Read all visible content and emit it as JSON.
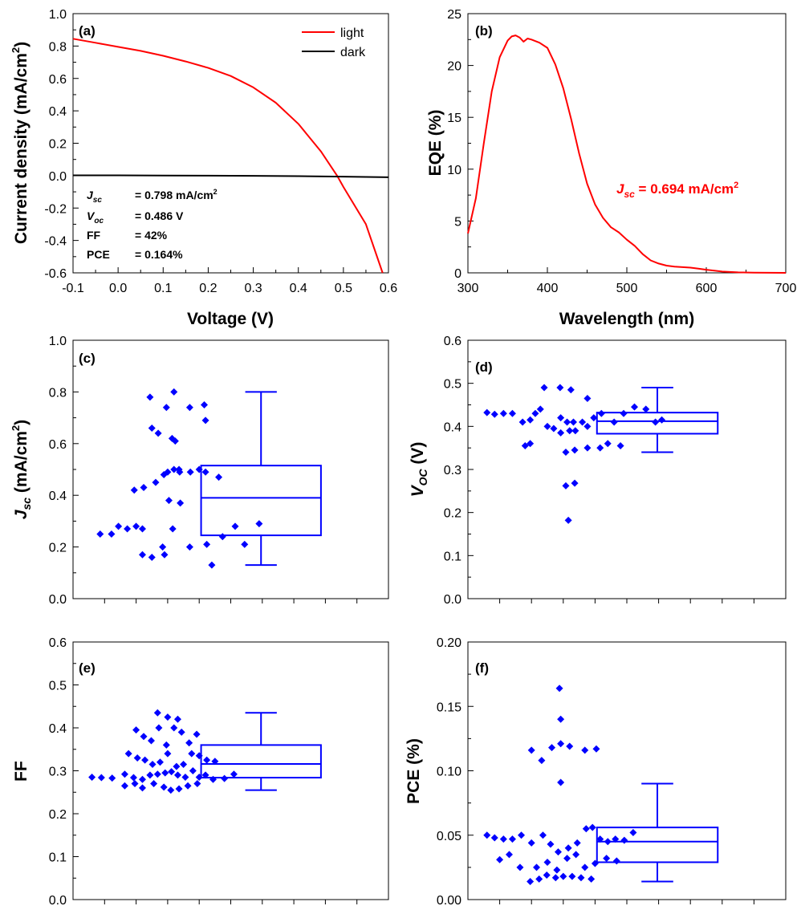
{
  "chart_data": [
    {
      "id": "a",
      "type": "line",
      "panel_label": "(a)",
      "xlabel": "Voltage (V)",
      "ylabel_main": "Current density (mA/cm",
      "ylabel_sup": "2",
      "ylabel_tail": ")",
      "xlim": [
        -0.1,
        0.6
      ],
      "ylim": [
        -0.6,
        1.0
      ],
      "xticks": [
        -0.1,
        0.0,
        0.1,
        0.2,
        0.3,
        0.4,
        0.5,
        0.6
      ],
      "xtick_labels": [
        "-0.1",
        "0.0",
        "0.1",
        "0.2",
        "0.3",
        "0.4",
        "0.5",
        "0.6"
      ],
      "yticks": [
        -0.6,
        -0.4,
        -0.2,
        0.0,
        0.2,
        0.4,
        0.6,
        0.8,
        1.0
      ],
      "ytick_labels": [
        "-0.6",
        "-0.4",
        "-0.2",
        "0.0",
        "0.2",
        "0.4",
        "0.6",
        "0.8",
        "1.0"
      ],
      "legend": "top-right",
      "series": [
        {
          "name": "light",
          "color": "#ff0000",
          "x": [
            -0.1,
            -0.05,
            0.0,
            0.05,
            0.1,
            0.15,
            0.2,
            0.25,
            0.3,
            0.35,
            0.4,
            0.45,
            0.486,
            0.5,
            0.55,
            0.587
          ],
          "y": [
            0.845,
            0.82,
            0.795,
            0.77,
            0.74,
            0.705,
            0.665,
            0.615,
            0.545,
            0.45,
            0.32,
            0.15,
            0.0,
            -0.07,
            -0.3,
            -0.6
          ]
        },
        {
          "name": "dark",
          "color": "#000000",
          "x": [
            -0.1,
            0.0,
            0.1,
            0.2,
            0.3,
            0.4,
            0.5,
            0.6
          ],
          "y": [
            0.002,
            0.002,
            0.001,
            0.0,
            -0.001,
            -0.003,
            -0.006,
            -0.01
          ]
        }
      ],
      "annotations": [
        {
          "label_main": "J",
          "label_sub": "sc",
          "value": "= 0.798 mA/cm",
          "value_sup": "2"
        },
        {
          "label_main": "V",
          "label_sub": "oc",
          "value": "= 0.486 V",
          "value_sup": ""
        },
        {
          "label_main": "FF",
          "label_sub": "",
          "value": "= 42%",
          "value_sup": ""
        },
        {
          "label_main": "PCE",
          "label_sub": "",
          "value": "= 0.164%",
          "value_sup": ""
        }
      ]
    },
    {
      "id": "b",
      "type": "line",
      "panel_label": "(b)",
      "xlabel": "Wavelength (nm)",
      "ylabel": "EQE (%)",
      "xlim": [
        300,
        700
      ],
      "ylim": [
        0,
        25
      ],
      "xticks": [
        300,
        400,
        500,
        600,
        700
      ],
      "xtick_labels": [
        "300",
        "400",
        "500",
        "600",
        "700"
      ],
      "yticks": [
        0,
        5,
        10,
        15,
        20,
        25
      ],
      "ytick_labels": [
        "0",
        "5",
        "10",
        "15",
        "20",
        "25"
      ],
      "series": [
        {
          "color": "#ff0000",
          "x": [
            300,
            310,
            320,
            330,
            340,
            350,
            355,
            360,
            365,
            370,
            375,
            380,
            390,
            400,
            410,
            420,
            430,
            440,
            450,
            460,
            470,
            480,
            490,
            500,
            510,
            520,
            530,
            540,
            550,
            560,
            570,
            580,
            590,
            600,
            620,
            640,
            660,
            680,
            700
          ],
          "y": [
            3.8,
            7.2,
            12.5,
            17.5,
            20.8,
            22.4,
            22.8,
            22.9,
            22.7,
            22.3,
            22.6,
            22.5,
            22.2,
            21.7,
            20.1,
            17.8,
            14.8,
            11.5,
            8.6,
            6.6,
            5.3,
            4.4,
            3.9,
            3.2,
            2.6,
            1.8,
            1.2,
            0.9,
            0.7,
            0.6,
            0.55,
            0.5,
            0.4,
            0.3,
            0.12,
            0.05,
            0.02,
            0.01,
            0.0
          ]
        }
      ],
      "annotation": {
        "label_main": "J",
        "label_sub": "sc",
        "value": " = 0.694 mA/cm",
        "value_sup": "2",
        "color": "#ff0000"
      }
    },
    {
      "id": "c",
      "type": "scatter",
      "panel_label": "(c)",
      "ylabel_main": "J",
      "ylabel_sub": "sc",
      "ylabel_tail": " (mA/cm",
      "ylabel_sup": "2",
      "ylabel_end": ")",
      "ylim": [
        0.0,
        1.0
      ],
      "yticks": [
        0.0,
        0.2,
        0.4,
        0.6,
        0.8,
        1.0
      ],
      "ytick_labels": [
        "0.0",
        "0.2",
        "0.4",
        "0.6",
        "0.8",
        "1.0"
      ],
      "color": "#0000ff",
      "points": [
        {
          "x": 0.43,
          "y": 0.25
        },
        {
          "x": 0.61,
          "y": 0.25
        },
        {
          "x": 0.86,
          "y": 0.27
        },
        {
          "x": 0.72,
          "y": 0.28
        },
        {
          "x": 1.1,
          "y": 0.27
        },
        {
          "x": 1.0,
          "y": 0.28
        },
        {
          "x": 0.97,
          "y": 0.42
        },
        {
          "x": 1.12,
          "y": 0.43
        },
        {
          "x": 1.31,
          "y": 0.45
        },
        {
          "x": 1.44,
          "y": 0.48
        },
        {
          "x": 1.5,
          "y": 0.49
        },
        {
          "x": 1.69,
          "y": 0.49
        },
        {
          "x": 1.86,
          "y": 0.49
        },
        {
          "x": 2.1,
          "y": 0.49
        },
        {
          "x": 2.31,
          "y": 0.47
        },
        {
          "x": 1.6,
          "y": 0.5
        },
        {
          "x": 1.68,
          "y": 0.5
        },
        {
          "x": 2.0,
          "y": 0.5
        },
        {
          "x": 1.52,
          "y": 0.38
        },
        {
          "x": 1.7,
          "y": 0.37
        },
        {
          "x": 1.58,
          "y": 0.27
        },
        {
          "x": 1.57,
          "y": 0.62
        },
        {
          "x": 1.62,
          "y": 0.61
        },
        {
          "x": 1.25,
          "y": 0.66
        },
        {
          "x": 1.35,
          "y": 0.64
        },
        {
          "x": 1.48,
          "y": 0.74
        },
        {
          "x": 1.85,
          "y": 0.74
        },
        {
          "x": 2.1,
          "y": 0.69
        },
        {
          "x": 2.08,
          "y": 0.75
        },
        {
          "x": 1.22,
          "y": 0.78
        },
        {
          "x": 1.6,
          "y": 0.8
        },
        {
          "x": 1.1,
          "y": 0.17
        },
        {
          "x": 1.25,
          "y": 0.16
        },
        {
          "x": 1.45,
          "y": 0.17
        },
        {
          "x": 1.42,
          "y": 0.2
        },
        {
          "x": 1.85,
          "y": 0.2
        },
        {
          "x": 2.12,
          "y": 0.21
        },
        {
          "x": 2.2,
          "y": 0.13
        },
        {
          "x": 2.37,
          "y": 0.24
        },
        {
          "x": 2.57,
          "y": 0.28
        },
        {
          "x": 2.72,
          "y": 0.21
        },
        {
          "x": 2.95,
          "y": 0.29
        }
      ],
      "box": {
        "whisker_low": 0.13,
        "q1": 0.245,
        "median": 0.39,
        "q3": 0.515,
        "whisker_high": 0.8
      }
    },
    {
      "id": "d",
      "type": "scatter",
      "panel_label": "(d)",
      "ylabel_main": "V",
      "ylabel_sub": "OC",
      "ylabel_tail": " (V)",
      "ylim": [
        0.0,
        0.6
      ],
      "yticks": [
        0.0,
        0.1,
        0.2,
        0.3,
        0.4,
        0.5,
        0.6
      ],
      "ytick_labels": [
        "0.0",
        "0.1",
        "0.2",
        "0.3",
        "0.4",
        "0.5",
        "0.6"
      ],
      "color": "#0000ff",
      "points": [
        {
          "x": 0.3,
          "y": 0.432
        },
        {
          "x": 0.42,
          "y": 0.428
        },
        {
          "x": 0.56,
          "y": 0.43
        },
        {
          "x": 0.7,
          "y": 0.43
        },
        {
          "x": 0.86,
          "y": 0.41
        },
        {
          "x": 0.98,
          "y": 0.415
        },
        {
          "x": 1.06,
          "y": 0.43
        },
        {
          "x": 1.14,
          "y": 0.44
        },
        {
          "x": 1.25,
          "y": 0.4
        },
        {
          "x": 1.35,
          "y": 0.395
        },
        {
          "x": 1.46,
          "y": 0.42
        },
        {
          "x": 1.56,
          "y": 0.41
        },
        {
          "x": 1.66,
          "y": 0.41
        },
        {
          "x": 1.8,
          "y": 0.41
        },
        {
          "x": 1.46,
          "y": 0.385
        },
        {
          "x": 1.6,
          "y": 0.39
        },
        {
          "x": 1.69,
          "y": 0.39
        },
        {
          "x": 1.88,
          "y": 0.4
        },
        {
          "x": 1.98,
          "y": 0.42
        },
        {
          "x": 2.1,
          "y": 0.43
        },
        {
          "x": 2.3,
          "y": 0.41
        },
        {
          "x": 2.45,
          "y": 0.43
        },
        {
          "x": 2.62,
          "y": 0.445
        },
        {
          "x": 2.8,
          "y": 0.44
        },
        {
          "x": 2.95,
          "y": 0.41
        },
        {
          "x": 3.05,
          "y": 0.415
        },
        {
          "x": 1.2,
          "y": 0.49
        },
        {
          "x": 1.45,
          "y": 0.49
        },
        {
          "x": 1.62,
          "y": 0.485
        },
        {
          "x": 1.88,
          "y": 0.465
        },
        {
          "x": 0.9,
          "y": 0.355
        },
        {
          "x": 0.98,
          "y": 0.36
        },
        {
          "x": 1.54,
          "y": 0.34
        },
        {
          "x": 1.68,
          "y": 0.345
        },
        {
          "x": 1.88,
          "y": 0.35
        },
        {
          "x": 2.08,
          "y": 0.35
        },
        {
          "x": 2.2,
          "y": 0.36
        },
        {
          "x": 2.4,
          "y": 0.355
        },
        {
          "x": 1.54,
          "y": 0.262
        },
        {
          "x": 1.68,
          "y": 0.268
        },
        {
          "x": 1.58,
          "y": 0.182
        }
      ],
      "box": {
        "whisker_low": 0.34,
        "q1": 0.383,
        "median": 0.412,
        "q3": 0.432,
        "whisker_high": 0.49
      }
    },
    {
      "id": "e",
      "type": "scatter",
      "panel_label": "(e)",
      "ylabel": "FF",
      "ylim": [
        0.0,
        0.6
      ],
      "yticks": [
        0.0,
        0.1,
        0.2,
        0.3,
        0.4,
        0.5,
        0.6
      ],
      "ytick_labels": [
        "0.0",
        "0.1",
        "0.2",
        "0.3",
        "0.4",
        "0.5",
        "0.6"
      ],
      "color": "#0000ff",
      "points": [
        {
          "x": 0.3,
          "y": 0.285
        },
        {
          "x": 0.45,
          "y": 0.284
        },
        {
          "x": 0.62,
          "y": 0.283
        },
        {
          "x": 0.82,
          "y": 0.292
        },
        {
          "x": 0.96,
          "y": 0.284
        },
        {
          "x": 1.1,
          "y": 0.28
        },
        {
          "x": 1.22,
          "y": 0.29
        },
        {
          "x": 1.34,
          "y": 0.292
        },
        {
          "x": 1.46,
          "y": 0.295
        },
        {
          "x": 1.56,
          "y": 0.298
        },
        {
          "x": 1.66,
          "y": 0.29
        },
        {
          "x": 1.78,
          "y": 0.285
        },
        {
          "x": 1.9,
          "y": 0.3
        },
        {
          "x": 2.0,
          "y": 0.285
        },
        {
          "x": 2.1,
          "y": 0.29
        },
        {
          "x": 2.22,
          "y": 0.28
        },
        {
          "x": 2.4,
          "y": 0.282
        },
        {
          "x": 2.55,
          "y": 0.292
        },
        {
          "x": 0.82,
          "y": 0.265
        },
        {
          "x": 0.98,
          "y": 0.27
        },
        {
          "x": 1.1,
          "y": 0.26
        },
        {
          "x": 1.28,
          "y": 0.27
        },
        {
          "x": 1.44,
          "y": 0.262
        },
        {
          "x": 1.55,
          "y": 0.255
        },
        {
          "x": 1.68,
          "y": 0.258
        },
        {
          "x": 1.82,
          "y": 0.265
        },
        {
          "x": 1.97,
          "y": 0.27
        },
        {
          "x": 0.88,
          "y": 0.34
        },
        {
          "x": 1.02,
          "y": 0.33
        },
        {
          "x": 1.14,
          "y": 0.325
        },
        {
          "x": 1.26,
          "y": 0.315
        },
        {
          "x": 1.38,
          "y": 0.32
        },
        {
          "x": 1.5,
          "y": 0.34
        },
        {
          "x": 1.64,
          "y": 0.31
        },
        {
          "x": 1.75,
          "y": 0.315
        },
        {
          "x": 1.88,
          "y": 0.34
        },
        {
          "x": 2.0,
          "y": 0.335
        },
        {
          "x": 2.12,
          "y": 0.325
        },
        {
          "x": 2.25,
          "y": 0.322
        },
        {
          "x": 1.0,
          "y": 0.395
        },
        {
          "x": 1.12,
          "y": 0.38
        },
        {
          "x": 1.24,
          "y": 0.37
        },
        {
          "x": 1.36,
          "y": 0.4
        },
        {
          "x": 1.48,
          "y": 0.36
        },
        {
          "x": 1.6,
          "y": 0.4
        },
        {
          "x": 1.72,
          "y": 0.39
        },
        {
          "x": 1.84,
          "y": 0.365
        },
        {
          "x": 1.96,
          "y": 0.385
        },
        {
          "x": 1.34,
          "y": 0.435
        },
        {
          "x": 1.5,
          "y": 0.425
        },
        {
          "x": 1.66,
          "y": 0.42
        }
      ],
      "box": {
        "whisker_low": 0.255,
        "q1": 0.284,
        "median": 0.316,
        "q3": 0.36,
        "whisker_high": 0.435
      }
    },
    {
      "id": "f",
      "type": "scatter",
      "panel_label": "(f)",
      "ylabel": "PCE (%)",
      "ylim": [
        0.0,
        0.2
      ],
      "yticks": [
        0.0,
        0.05,
        0.1,
        0.15,
        0.2
      ],
      "ytick_labels": [
        "0.00",
        "0.05",
        "0.10",
        "0.15",
        "0.20"
      ],
      "color": "#0000ff",
      "points": [
        {
          "x": 0.3,
          "y": 0.05
        },
        {
          "x": 0.42,
          "y": 0.048
        },
        {
          "x": 0.56,
          "y": 0.047
        },
        {
          "x": 0.7,
          "y": 0.047
        },
        {
          "x": 0.84,
          "y": 0.05
        },
        {
          "x": 1.0,
          "y": 0.044
        },
        {
          "x": 1.18,
          "y": 0.05
        },
        {
          "x": 1.3,
          "y": 0.043
        },
        {
          "x": 1.42,
          "y": 0.037
        },
        {
          "x": 1.58,
          "y": 0.04
        },
        {
          "x": 1.72,
          "y": 0.044
        },
        {
          "x": 1.86,
          "y": 0.055
        },
        {
          "x": 1.96,
          "y": 0.056
        },
        {
          "x": 2.08,
          "y": 0.047
        },
        {
          "x": 2.2,
          "y": 0.045
        },
        {
          "x": 2.32,
          "y": 0.047
        },
        {
          "x": 2.46,
          "y": 0.046
        },
        {
          "x": 2.6,
          "y": 0.052
        },
        {
          "x": 0.5,
          "y": 0.031
        },
        {
          "x": 0.65,
          "y": 0.035
        },
        {
          "x": 0.82,
          "y": 0.025
        },
        {
          "x": 1.08,
          "y": 0.025
        },
        {
          "x": 1.25,
          "y": 0.029
        },
        {
          "x": 1.4,
          "y": 0.023
        },
        {
          "x": 1.56,
          "y": 0.032
        },
        {
          "x": 1.7,
          "y": 0.035
        },
        {
          "x": 1.84,
          "y": 0.025
        },
        {
          "x": 2.0,
          "y": 0.028
        },
        {
          "x": 2.18,
          "y": 0.032
        },
        {
          "x": 2.34,
          "y": 0.03
        },
        {
          "x": 0.98,
          "y": 0.014
        },
        {
          "x": 1.12,
          "y": 0.016
        },
        {
          "x": 1.24,
          "y": 0.019
        },
        {
          "x": 1.38,
          "y": 0.017
        },
        {
          "x": 1.5,
          "y": 0.018
        },
        {
          "x": 1.64,
          "y": 0.018
        },
        {
          "x": 1.78,
          "y": 0.017
        },
        {
          "x": 1.94,
          "y": 0.016
        },
        {
          "x": 1.0,
          "y": 0.116
        },
        {
          "x": 1.16,
          "y": 0.108
        },
        {
          "x": 1.32,
          "y": 0.118
        },
        {
          "x": 1.46,
          "y": 0.121
        },
        {
          "x": 1.6,
          "y": 0.119
        },
        {
          "x": 1.84,
          "y": 0.116
        },
        {
          "x": 2.02,
          "y": 0.117
        },
        {
          "x": 1.46,
          "y": 0.14
        },
        {
          "x": 1.46,
          "y": 0.091
        },
        {
          "x": 1.44,
          "y": 0.164
        }
      ],
      "box": {
        "whisker_low": 0.014,
        "q1": 0.029,
        "median": 0.045,
        "q3": 0.056,
        "whisker_high": 0.09
      }
    }
  ]
}
